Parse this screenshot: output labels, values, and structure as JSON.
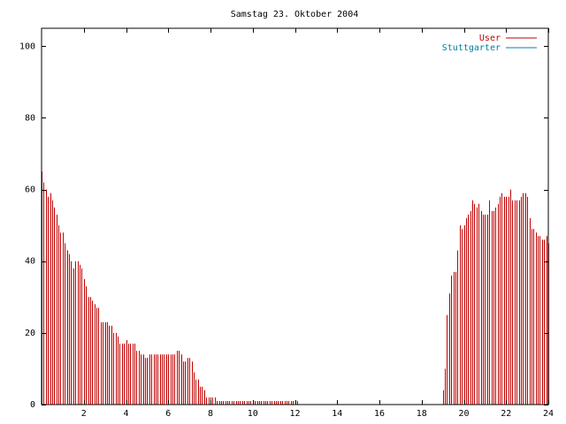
{
  "chart_data": {
    "type": "bar",
    "title": "Samstag 23. Oktober 2004",
    "xlabel": "",
    "ylabel": "",
    "xlim": [
      0,
      24
    ],
    "ylim": [
      0,
      105
    ],
    "x_ticks": [
      2,
      4,
      6,
      8,
      10,
      12,
      14,
      16,
      18,
      20,
      22,
      24
    ],
    "y_ticks": [
      0,
      20,
      40,
      60,
      80,
      100
    ],
    "grid": false,
    "legend_position": "top-right",
    "bar_step": 0.1,
    "series": [
      {
        "name": "User",
        "color": "#c00000",
        "start": 0.0,
        "values": [
          65,
          62,
          60,
          58,
          59,
          57,
          55,
          53,
          50,
          48,
          48,
          45,
          43,
          42,
          40,
          38,
          40,
          40,
          39,
          38,
          35,
          33,
          30,
          30,
          29,
          28,
          27,
          27,
          23,
          23,
          23,
          23,
          22,
          22,
          20,
          20,
          19,
          17,
          17,
          17,
          18,
          17,
          17,
          17,
          17,
          15,
          15,
          14,
          14,
          13,
          13,
          14,
          14,
          14,
          14,
          14,
          14,
          14,
          14,
          14,
          14,
          14,
          14,
          14,
          15,
          15,
          14,
          12,
          12,
          13,
          13,
          12,
          9,
          7,
          7,
          5,
          5,
          4,
          2,
          2,
          2,
          2,
          2,
          1,
          1,
          1,
          1,
          1,
          1,
          1,
          1,
          1,
          1,
          1,
          1,
          1,
          1,
          1,
          1,
          1,
          1,
          1,
          1,
          1,
          1,
          1,
          1,
          1,
          1,
          1,
          1,
          1,
          1,
          1,
          1,
          1,
          1,
          1,
          1,
          1,
          1,
          1
        ]
      },
      {
        "name": "User",
        "color": "#c00000",
        "start": 19.0,
        "values": [
          4,
          10,
          25,
          31,
          36,
          37,
          37,
          43,
          50,
          49,
          50,
          52,
          53,
          54,
          57,
          56,
          55,
          56,
          54,
          53,
          53,
          53,
          57,
          54,
          54,
          55,
          56,
          58,
          59,
          58,
          58,
          58,
          60,
          57,
          57,
          57,
          57,
          58,
          59,
          59,
          58,
          52,
          49,
          49,
          48,
          47,
          47,
          46,
          46,
          47,
          45
        ]
      },
      {
        "name": "Stuttgarter",
        "color": "#0080a0",
        "type": "line",
        "x": [
          12.2,
          19.1
        ],
        "values": [
          0,
          0
        ]
      }
    ]
  },
  "legend": [
    {
      "label": "User",
      "color": "#c00000"
    },
    {
      "label": "Stuttgarter",
      "color": "#0080a0"
    }
  ]
}
